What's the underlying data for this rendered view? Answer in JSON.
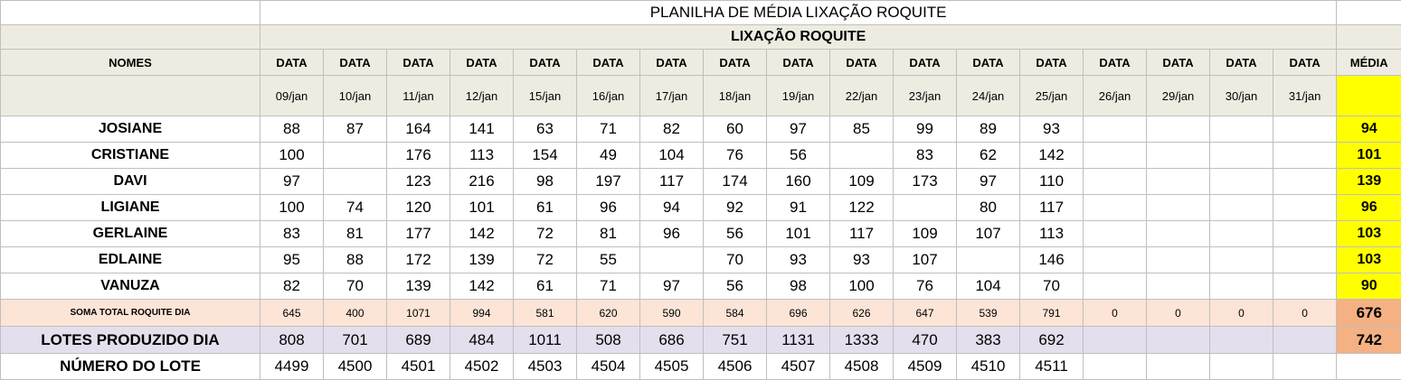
{
  "title": "PLANILHA DE MÉDIA LIXAÇÃO ROQUITE",
  "subtitle": "LIXAÇÃO ROQUITE",
  "headers": {
    "names_label": "NOMES",
    "data_label": "DATA",
    "media_label": "MÉDIA"
  },
  "dates": [
    "09/jan",
    "10/jan",
    "11/jan",
    "12/jan",
    "15/jan",
    "16/jan",
    "17/jan",
    "18/jan",
    "19/jan",
    "22/jan",
    "23/jan",
    "24/jan",
    "25/jan",
    "26/jan",
    "29/jan",
    "30/jan",
    "31/jan"
  ],
  "rows": [
    {
      "name": "JOSIANE",
      "values": [
        "88",
        "87",
        "164",
        "141",
        "63",
        "71",
        "82",
        "60",
        "97",
        "85",
        "99",
        "89",
        "93",
        "",
        "",
        "",
        ""
      ],
      "media": "94"
    },
    {
      "name": "CRISTIANE",
      "values": [
        "100",
        "",
        "176",
        "113",
        "154",
        "49",
        "104",
        "76",
        "56",
        "",
        "83",
        "62",
        "142",
        "",
        "",
        "",
        ""
      ],
      "media": "101"
    },
    {
      "name": "DAVI",
      "values": [
        "97",
        "",
        "123",
        "216",
        "98",
        "197",
        "117",
        "174",
        "160",
        "109",
        "173",
        "97",
        "110",
        "",
        "",
        "",
        ""
      ],
      "media": "139"
    },
    {
      "name": "LIGIANE",
      "values": [
        "100",
        "74",
        "120",
        "101",
        "61",
        "96",
        "94",
        "92",
        "91",
        "122",
        "",
        "80",
        "117",
        "",
        "",
        "",
        ""
      ],
      "media": "96"
    },
    {
      "name": "GERLAINE",
      "values": [
        "83",
        "81",
        "177",
        "142",
        "72",
        "81",
        "96",
        "56",
        "101",
        "117",
        "109",
        "107",
        "113",
        "",
        "",
        "",
        ""
      ],
      "media": "103"
    },
    {
      "name": "EDLAINE",
      "values": [
        "95",
        "88",
        "172",
        "139",
        "72",
        "55",
        "",
        "70",
        "93",
        "93",
        "107",
        "",
        "146",
        "",
        "",
        "",
        ""
      ],
      "media": "103"
    },
    {
      "name": "VANUZA",
      "values": [
        "82",
        "70",
        "139",
        "142",
        "61",
        "71",
        "97",
        "56",
        "98",
        "100",
        "76",
        "104",
        "70",
        "",
        "",
        "",
        ""
      ],
      "media": "90"
    }
  ],
  "soma": {
    "label": "SOMA TOTAL  ROQUITE DIA",
    "values": [
      "645",
      "400",
      "1071",
      "994",
      "581",
      "620",
      "590",
      "584",
      "696",
      "626",
      "647",
      "539",
      "791",
      "0",
      "0",
      "0",
      "0"
    ],
    "media": "676"
  },
  "lotes": {
    "label": "LOTES PRODUZIDO DIA",
    "values": [
      "808",
      "701",
      "689",
      "484",
      "1011",
      "508",
      "686",
      "751",
      "1131",
      "1333",
      "470",
      "383",
      "692",
      "",
      "",
      "",
      ""
    ],
    "media": "742"
  },
  "numero": {
    "label": "NÚMERO DO LOTE",
    "values": [
      "4499",
      "4500",
      "4501",
      "4502",
      "4503",
      "4504",
      "4505",
      "4506",
      "4507",
      "4508",
      "4509",
      "4510",
      "4511",
      "",
      "",
      "",
      ""
    ],
    "media": ""
  },
  "colors": {
    "header_bg": "#eeece1",
    "media_yellow": "#ffff00",
    "soma_bg": "#fce4d6",
    "lotes_bg": "#e4dfec",
    "media_orange": "#f4b183"
  }
}
